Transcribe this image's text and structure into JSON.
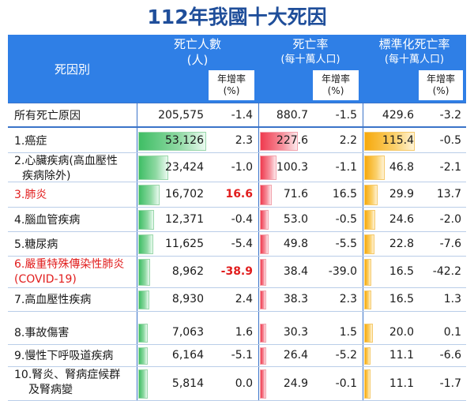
{
  "title": "112年我國十大死因",
  "headers": {
    "cause": "死因別",
    "deaths": {
      "line1": "死亡人數",
      "line2": "(人)"
    },
    "rate": {
      "line1": "死亡率",
      "line2": "(每十萬人口)"
    },
    "std": {
      "line1": "標準化死亡率",
      "line2": "(每十萬人口)"
    },
    "growth": {
      "line1": "年增率",
      "line2": "(%)"
    }
  },
  "total": {
    "label": "所有死亡原因",
    "deaths": "205,575",
    "deaths_growth": "-1.4",
    "rate": "880.7",
    "rate_growth": "-1.5",
    "std": "429.6",
    "std_growth": "-3.2"
  },
  "rows": [
    {
      "name_lines": [
        "1.癌症"
      ],
      "highlight": false,
      "deaths": "53,126",
      "deaths_value": 53126,
      "deaths_growth": "2.3",
      "growth_bold": false,
      "rate": "227.6",
      "rate_value": 227.6,
      "rate_growth": "2.2",
      "std": "115.4",
      "std_value": 115.4,
      "std_growth": "-0.5"
    },
    {
      "name_lines": [
        "2.心臟疾病(高血壓性",
        "疾病除外)"
      ],
      "highlight": false,
      "deaths": "23,424",
      "deaths_value": 23424,
      "deaths_growth": "-1.0",
      "growth_bold": false,
      "rate": "100.3",
      "rate_value": 100.3,
      "rate_growth": "-1.1",
      "std": "46.8",
      "std_value": 46.8,
      "std_growth": "-2.1"
    },
    {
      "name_lines": [
        "3.肺炎"
      ],
      "highlight": true,
      "deaths": "16,702",
      "deaths_value": 16702,
      "deaths_growth": "16.6",
      "growth_bold": true,
      "rate": "71.6",
      "rate_value": 71.6,
      "rate_growth": "16.5",
      "std": "29.9",
      "std_value": 29.9,
      "std_growth": "13.7"
    },
    {
      "name_lines": [
        "4.腦血管疾病"
      ],
      "highlight": false,
      "deaths": "12,371",
      "deaths_value": 12371,
      "deaths_growth": "-0.4",
      "growth_bold": false,
      "rate": "53.0",
      "rate_value": 53.0,
      "rate_growth": "-0.5",
      "std": "24.6",
      "std_value": 24.6,
      "std_growth": "-2.0"
    },
    {
      "name_lines": [
        "5.糖尿病"
      ],
      "highlight": false,
      "deaths": "11,625",
      "deaths_value": 11625,
      "deaths_growth": "-5.4",
      "growth_bold": false,
      "rate": "49.8",
      "rate_value": 49.8,
      "rate_growth": "-5.5",
      "std": "22.8",
      "std_value": 22.8,
      "std_growth": "-7.6"
    },
    {
      "name_lines": [
        "6.嚴重特殊傳染性肺炎",
        "(COVID-19)"
      ],
      "highlight": true,
      "deaths": "8,962",
      "deaths_value": 8962,
      "deaths_growth": "-38.9",
      "growth_bold": true,
      "rate": "38.4",
      "rate_value": 38.4,
      "rate_growth": "-39.0",
      "std": "16.5",
      "std_value": 16.5,
      "std_growth": "-42.2"
    },
    {
      "name_lines": [
        "7.高血壓性疾病"
      ],
      "highlight": false,
      "deaths": "8,930",
      "deaths_value": 8930,
      "deaths_growth": "2.4",
      "growth_bold": false,
      "rate": "38.3",
      "rate_value": 38.3,
      "rate_growth": "2.3",
      "std": "16.5",
      "std_value": 16.5,
      "std_growth": "1.3"
    },
    {
      "name_lines": [
        "8.事故傷害"
      ],
      "highlight": false,
      "deaths": "7,063",
      "deaths_value": 7063,
      "deaths_growth": "1.6",
      "growth_bold": false,
      "rate": "30.3",
      "rate_value": 30.3,
      "rate_growth": "1.5",
      "std": "20.0",
      "std_value": 20.0,
      "std_growth": "0.1"
    },
    {
      "name_lines": [
        "9.慢性下呼吸道疾病"
      ],
      "highlight": false,
      "deaths": "6,164",
      "deaths_value": 6164,
      "deaths_growth": "-5.1",
      "growth_bold": false,
      "rate": "26.4",
      "rate_value": 26.4,
      "rate_growth": "-5.2",
      "std": "11.1",
      "std_value": 11.1,
      "std_growth": "-6.6"
    },
    {
      "name_lines": [
        "10.腎炎、腎病症候群",
        "及腎病變"
      ],
      "highlight": false,
      "deaths": "5,814",
      "deaths_value": 5814,
      "deaths_growth": "0.0",
      "growth_bold": false,
      "rate": "24.9",
      "rate_value": 24.9,
      "rate_growth": "-0.1",
      "std": "11.1",
      "std_value": 11.1,
      "std_growth": "-1.7"
    }
  ],
  "colors": {
    "header_bg": "#2f7fe6",
    "title": "#1f4e9a",
    "highlight_text": "#e11d1d",
    "deaths_bar": "#3fbe65",
    "rate_bar": "#ef3b4f",
    "std_bar": "#f6a90d"
  }
}
